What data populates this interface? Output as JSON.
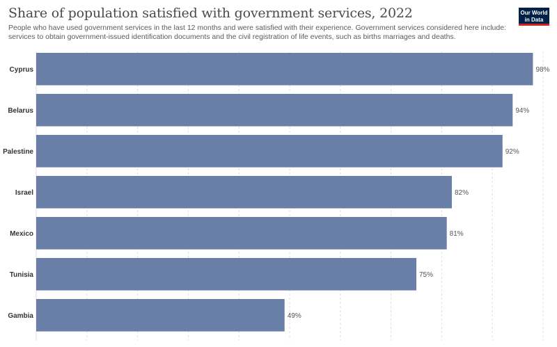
{
  "header": {
    "title": "Share of population satisfied with government services, 2022",
    "subtitle": "People who have used government services in the last 12 months and were satisfied with their experience. Government services considered here include: services to obtain government-issued identification documents and the civil registration of life events, such as births marriages and deaths."
  },
  "logo": {
    "line1": "Our World",
    "line2": "in Data"
  },
  "chart_data": {
    "type": "bar",
    "orientation": "horizontal",
    "title": "Share of population satisfied with government services, 2022",
    "categories": [
      "Cyprus",
      "Belarus",
      "Palestine",
      "Israel",
      "Mexico",
      "Tunisia",
      "Gambia"
    ],
    "values": [
      98,
      94,
      92,
      82,
      81,
      75,
      49
    ],
    "value_labels": [
      "98%",
      "94%",
      "92%",
      "82%",
      "81%",
      "75%",
      "49%"
    ],
    "xlim": [
      0,
      100
    ],
    "grid": true,
    "bar_color": "#6a7fa8",
    "grid_color": "#dddddd"
  }
}
